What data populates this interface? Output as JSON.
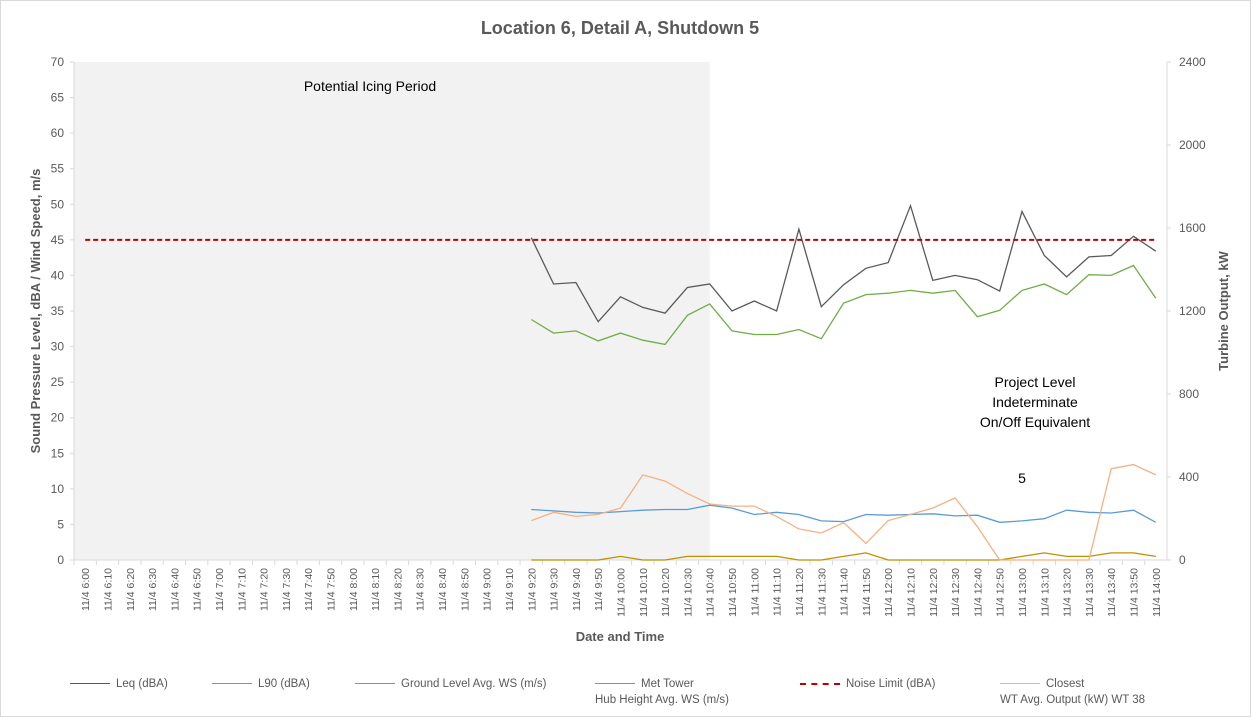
{
  "chart_data": {
    "type": "line",
    "title": "Location 6, Detail A, Shutdown 5",
    "x_label": "Date and Time",
    "y_label": "Sound Pressure Level, dBA / Wind Speed, m/s",
    "y2_label": "Turbine Output, kW",
    "categories": [
      "11/4 6:00",
      "11/4 6:10",
      "11/4 6:20",
      "11/4 6:30",
      "11/4 6:40",
      "11/4 6:50",
      "11/4 7:00",
      "11/4 7:10",
      "11/4 7:20",
      "11/4 7:30",
      "11/4 7:40",
      "11/4 7:50",
      "11/4 8:00",
      "11/4 8:10",
      "11/4 8:20",
      "11/4 8:30",
      "11/4 8:40",
      "11/4 8:50",
      "11/4 9:00",
      "11/4 9:10",
      "11/4 9:20",
      "11/4 9:30",
      "11/4 9:40",
      "11/4 9:50",
      "11/4 10:00",
      "11/4 10:10",
      "11/4 10:20",
      "11/4 10:30",
      "11/4 10:40",
      "11/4 10:50",
      "11/4 11:00",
      "11/4 11:10",
      "11/4 11:20",
      "11/4 11:30",
      "11/4 11:40",
      "11/4 11:50",
      "11/4 12:00",
      "11/4 12:10",
      "11/4 12:20",
      "11/4 12:30",
      "11/4 12:40",
      "11/4 12:50",
      "11/4 13:00",
      "11/4 13:10",
      "11/4 13:20",
      "11/4 13:30",
      "11/4 13:40",
      "11/4 13:50",
      "11/4 14:00"
    ],
    "series": [
      {
        "name": "Leq (dBA)",
        "color": "#595959",
        "values": [
          null,
          null,
          null,
          null,
          null,
          null,
          null,
          null,
          null,
          null,
          null,
          null,
          null,
          null,
          null,
          null,
          null,
          null,
          null,
          null,
          45.3,
          38.8,
          39,
          33.5,
          37,
          35.5,
          34.7,
          38.3,
          38.8,
          35,
          36.4,
          35,
          46.5,
          35.6,
          38.7,
          41,
          41.8,
          49.8,
          39.3,
          40,
          39.4,
          37.8,
          49,
          42.8,
          39.8,
          42.6,
          42.8,
          45.5,
          43.4
        ]
      },
      {
        "name": "L90 (dBA)",
        "color": "#70ad47",
        "values": [
          null,
          null,
          null,
          null,
          null,
          null,
          null,
          null,
          null,
          null,
          null,
          null,
          null,
          null,
          null,
          null,
          null,
          null,
          null,
          null,
          33.8,
          31.9,
          32.2,
          30.8,
          31.9,
          30.9,
          30.3,
          34.4,
          36,
          32.2,
          31.7,
          31.7,
          32.4,
          31.1,
          36.1,
          37.3,
          37.5,
          37.9,
          37.5,
          37.9,
          34.2,
          35.1,
          37.9,
          38.8,
          37.3,
          40.1,
          40,
          41.4,
          36.8
        ]
      },
      {
        "name": "Ground Level Avg. WS (m/s)",
        "color": "#bf9000",
        "values": [
          null,
          null,
          null,
          null,
          null,
          null,
          null,
          null,
          null,
          null,
          null,
          null,
          null,
          null,
          null,
          null,
          null,
          null,
          null,
          null,
          0,
          0,
          0,
          0,
          0.5,
          0,
          0,
          0.5,
          0.5,
          0.5,
          0.5,
          0.5,
          0,
          0,
          0.5,
          1,
          0,
          0,
          0,
          0,
          0,
          0,
          0.5,
          1,
          0.5,
          0.5,
          1,
          1,
          0.5
        ]
      },
      {
        "name": "Met Tower\nHub Height Avg. WS (m/s)",
        "color": "#5b9bd5",
        "values": [
          null,
          null,
          null,
          null,
          null,
          null,
          null,
          null,
          null,
          null,
          null,
          null,
          null,
          null,
          null,
          null,
          null,
          null,
          null,
          null,
          7.1,
          6.9,
          6.7,
          6.6,
          6.8,
          7,
          7.1,
          7.1,
          7.7,
          7.3,
          6.4,
          6.7,
          6.4,
          5.5,
          5.4,
          6.4,
          6.3,
          6.4,
          6.5,
          6.2,
          6.3,
          5.3,
          5.5,
          5.8,
          7,
          6.7,
          6.6,
          7,
          5.3
        ]
      },
      {
        "name": "Noise Limit (dBA)",
        "color": "#c00000",
        "dashed": true,
        "values": [
          45,
          45,
          45,
          45,
          45,
          45,
          45,
          45,
          45,
          45,
          45,
          45,
          45,
          45,
          45,
          45,
          45,
          45,
          45,
          45,
          45,
          45,
          45,
          45,
          45,
          45,
          45,
          45,
          45,
          45,
          45,
          45,
          45,
          45,
          45,
          45,
          45,
          45,
          45,
          45,
          45,
          45,
          45,
          45,
          45,
          45,
          45,
          45,
          45
        ]
      },
      {
        "name": "Closest\nWT Avg. Output (kW) WT 38",
        "color": "#f4b183",
        "axis": "y2",
        "values": [
          null,
          null,
          null,
          null,
          null,
          null,
          null,
          null,
          null,
          null,
          null,
          null,
          null,
          null,
          null,
          null,
          null,
          null,
          null,
          null,
          190,
          230,
          210,
          220,
          250,
          410,
          380,
          320,
          270,
          260,
          260,
          210,
          150,
          130,
          180,
          80,
          190,
          220,
          250,
          300,
          160,
          0,
          0,
          0,
          0,
          0,
          440,
          460,
          410
        ]
      }
    ],
    "ylim": [
      0,
      70
    ],
    "yticks": [
      0,
      5,
      10,
      15,
      20,
      25,
      30,
      35,
      40,
      45,
      50,
      55,
      60,
      65,
      70
    ],
    "y2lim": [
      0,
      2400
    ],
    "y2ticks": [
      0,
      400,
      800,
      1200,
      1600,
      2000,
      2400
    ],
    "grid": false,
    "shaded_range": [
      "11/4 6:00",
      "11/4 10:40"
    ],
    "annotations": [
      "Potential Icing Period",
      "Project Level\nIndeterminate\nOn/Off Equivalent",
      "5"
    ]
  }
}
